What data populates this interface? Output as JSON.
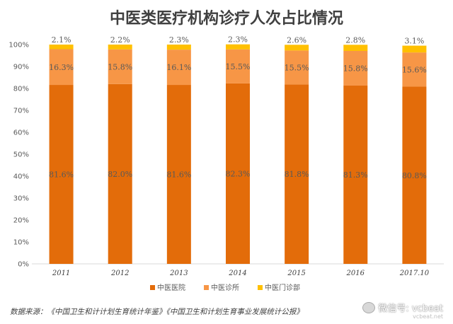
{
  "title": "中医类医疗机构诊疗人次占比情况",
  "source": "数据来源：《中国卫生和计计划生育统计年鉴》《中国卫生和计划生育事业发展统计公报》",
  "watermark": {
    "text": "微信号: vcbeat",
    "sub": "vcbeat.net"
  },
  "chart_data": {
    "type": "bar",
    "stacked": "percent",
    "title": "中医类医疗机构诊疗人次占比情况",
    "categories": [
      "2011",
      "2012",
      "2013",
      "2014",
      "2015",
      "2016",
      "2017.10"
    ],
    "series": [
      {
        "name": "中医医院",
        "values": [
          81.6,
          82.0,
          81.6,
          82.3,
          81.8,
          81.3,
          80.8
        ],
        "labels": [
          "81.6%",
          "82.0%",
          "81.6%",
          "82.3%",
          "81.8%",
          "81.3%",
          "80.8%"
        ],
        "color": "#e36c0a"
      },
      {
        "name": "中医诊所",
        "values": [
          16.3,
          15.8,
          16.1,
          15.5,
          15.5,
          15.8,
          15.6
        ],
        "labels": [
          "16.3%",
          "15.8%",
          "16.1%",
          "15.5%",
          "15.5%",
          "15.8%",
          "15.6%"
        ],
        "color": "#f79646"
      },
      {
        "name": "中医门诊部",
        "values": [
          2.1,
          2.2,
          2.3,
          2.3,
          2.6,
          2.8,
          3.1
        ],
        "labels": [
          "2.1%",
          "2.2%",
          "2.3%",
          "2.3%",
          "2.6%",
          "2.8%",
          "3.1%"
        ],
        "color": "#ffc000"
      }
    ],
    "ylim": [
      0,
      100
    ],
    "yticks": [
      "0%",
      "10%",
      "20%",
      "30%",
      "40%",
      "50%",
      "60%",
      "70%",
      "80%",
      "90%",
      "100%"
    ],
    "grid": false,
    "legend": "bottom"
  }
}
